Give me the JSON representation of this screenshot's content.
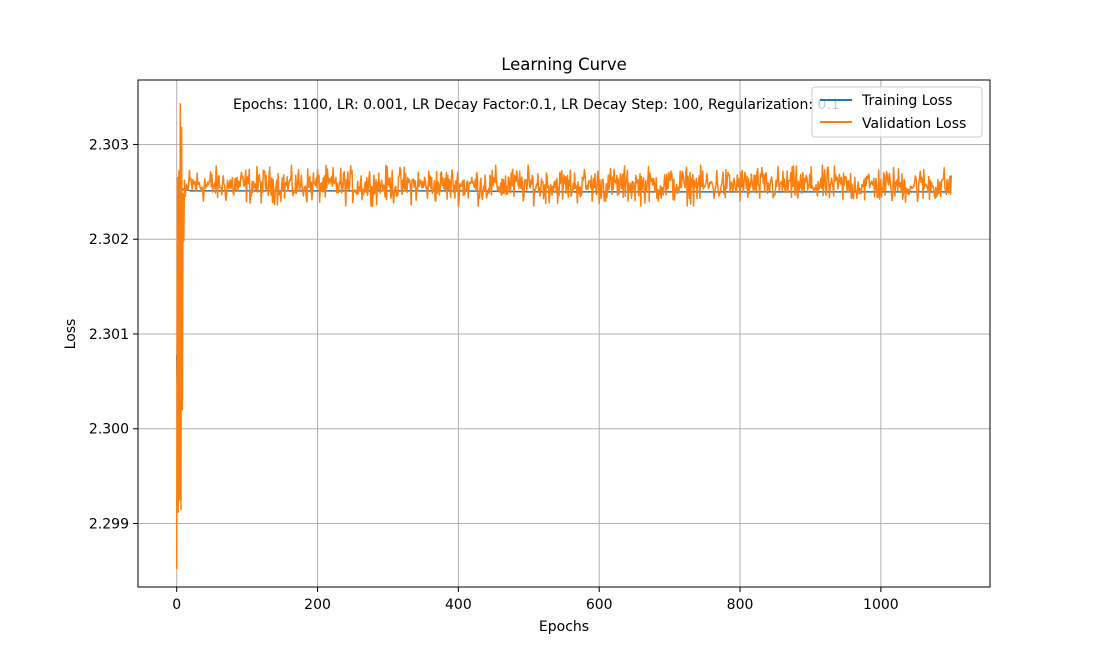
{
  "chart_data": {
    "type": "line",
    "title": "Learning Curve",
    "xlabel": "Epochs",
    "ylabel": "Loss",
    "xlim": [
      -55,
      1155
    ],
    "ylim": [
      2.29833,
      2.30368
    ],
    "xticks": [
      0,
      200,
      400,
      600,
      800,
      1000
    ],
    "yticks": [
      2.299,
      2.3,
      2.301,
      2.302,
      2.303
    ],
    "xtick_labels": [
      "0",
      "200",
      "400",
      "600",
      "800",
      "1000"
    ],
    "ytick_labels": [
      "2.299",
      "2.300",
      "2.301",
      "2.302",
      "2.303"
    ],
    "grid": true,
    "legend_position": "top-right",
    "annotation": "Epochs: 1100, LR: 0.001, LR Decay Factor:0.1, LR Decay Step: 100, Regularization: 0.1",
    "series": [
      {
        "name": "Training Loss",
        "color": "#1f77b4",
        "x": [
          0,
          1,
          2,
          3,
          4,
          5,
          6,
          8,
          10,
          15,
          20,
          50,
          100,
          200,
          300,
          400,
          500,
          600,
          700,
          800,
          900,
          1000,
          1100
        ],
        "values": [
          2.30078,
          2.30035,
          2.30155,
          2.3022,
          2.30245,
          2.30252,
          2.30254,
          2.30253,
          2.30252,
          2.30252,
          2.30251,
          2.30251,
          2.30251,
          2.30251,
          2.30251,
          2.30251,
          2.3025,
          2.3025,
          2.3025,
          2.3025,
          2.3025,
          2.3025,
          2.3025
        ]
      },
      {
        "name": "Validation Loss",
        "color": "#ff7f0e",
        "x": [
          0,
          1,
          2,
          3,
          4,
          5,
          6,
          7,
          8,
          9,
          10,
          11,
          12,
          14,
          16
        ],
        "values": [
          2.29852,
          2.30265,
          2.29912,
          2.30272,
          2.29925,
          2.30343,
          2.29915,
          2.30318,
          2.3002,
          2.30248,
          2.30198,
          2.30262,
          2.30245,
          2.30258,
          2.30252
        ],
        "noise_band": {
          "from_epoch": 16,
          "to_epoch": 1100,
          "center": 2.30257,
          "min": 2.30235,
          "max": 2.30278
        }
      }
    ]
  }
}
